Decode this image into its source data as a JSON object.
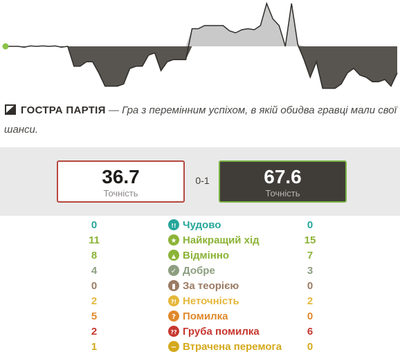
{
  "evaluation_graph": {
    "advantage": [
      0.0,
      0.0,
      0.0,
      -0.02,
      0.02,
      0.0,
      0.02,
      0.0,
      0.02,
      -0.02,
      0.0,
      -0.45,
      -0.45,
      -0.35,
      -0.35,
      -0.6,
      -0.9,
      -0.9,
      -0.9,
      -0.85,
      -0.5,
      -0.45,
      -0.45,
      -0.2,
      -0.15,
      -0.55,
      -0.35,
      -0.3,
      -0.3,
      -0.3,
      0.85,
      0.85,
      1.0,
      1.0,
      1.0,
      1.0,
      0.75,
      0.65,
      0.8,
      0.85,
      0.8,
      1.0,
      2.0,
      1.3,
      1.0,
      0.0,
      2.0,
      0.1,
      -0.3,
      -0.7,
      -0.35,
      -0.95,
      -0.95,
      -0.95,
      -0.85,
      -0.6,
      -0.5,
      -0.65,
      -0.7,
      -0.8,
      -0.8,
      -0.75,
      -0.9,
      -0.6
    ]
  },
  "game_classification": {
    "icon": "sharp-game-icon",
    "title": "ГОСТРА ПАРТІЯ",
    "separator": "—",
    "description": "Гра з перемінним успіхом, в якій обидва гравці мали свої шанси."
  },
  "accuracy": {
    "white": {
      "value": "36.7",
      "label": "Точність"
    },
    "black": {
      "value": "67.6",
      "label": "Точність"
    },
    "result": "0-1",
    "colors": {
      "white_border": "#b5473f",
      "black_border": "#7cb342",
      "black_fill": "#403d39"
    }
  },
  "move_classification": [
    {
      "label": "Чудово",
      "white": "0",
      "black": "0",
      "color": "#26a69a",
      "icon": "brilliant-icon",
      "glyph": "!!"
    },
    {
      "label": "Найкращий хід",
      "white": "11",
      "black": "15",
      "color": "#8bb336",
      "icon": "best-move-icon",
      "glyph": "★"
    },
    {
      "label": "Відмінно",
      "white": "8",
      "black": "7",
      "color": "#8bb336",
      "icon": "excellent-icon",
      "glyph": "👍"
    },
    {
      "label": "Добре",
      "white": "4",
      "black": "3",
      "color": "#8c9e7f",
      "icon": "good-icon",
      "glyph": "✓"
    },
    {
      "label": "За теорією",
      "white": "0",
      "black": "0",
      "color": "#9b7b63",
      "icon": "book-icon",
      "glyph": "▮"
    },
    {
      "label": "Неточність",
      "white": "2",
      "black": "2",
      "color": "#e5b73b",
      "icon": "inaccuracy-icon",
      "glyph": "?!"
    },
    {
      "label": "Помилка",
      "white": "5",
      "black": "0",
      "color": "#e0892b",
      "icon": "mistake-icon",
      "glyph": "?"
    },
    {
      "label": "Груба помилка",
      "white": "2",
      "black": "6",
      "color": "#c7372f",
      "icon": "blunder-icon",
      "glyph": "??"
    },
    {
      "label": "Втрачена перемога",
      "white": "1",
      "black": "0",
      "color": "#d5a91c",
      "icon": "missed-win-icon",
      "glyph": "−"
    }
  ]
}
